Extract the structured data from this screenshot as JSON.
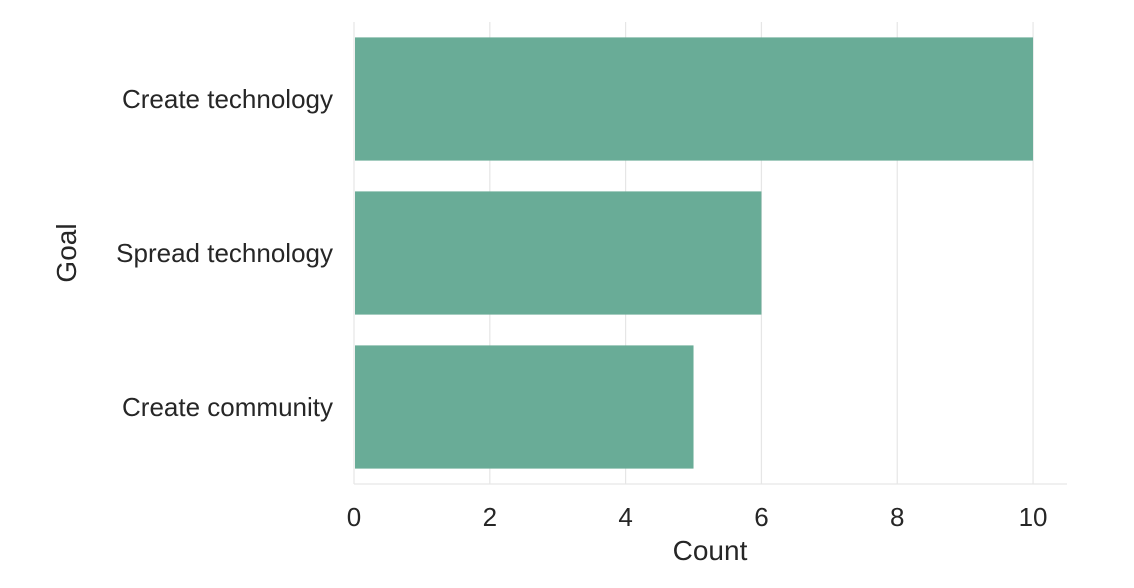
{
  "chart_data": {
    "type": "bar",
    "orientation": "horizontal",
    "title": "",
    "xlabel": "Count",
    "ylabel": "Goal",
    "categories": [
      "Create technology",
      "Spread technology",
      "Create community"
    ],
    "values": [
      10,
      6,
      5
    ],
    "xlim": [
      0,
      10.5
    ],
    "xticks": [
      0,
      2,
      4,
      6,
      8,
      10
    ],
    "grid": "vertical",
    "legend": "none",
    "bar_color": "#69ac97",
    "grid_color": "#e6e6e6"
  }
}
